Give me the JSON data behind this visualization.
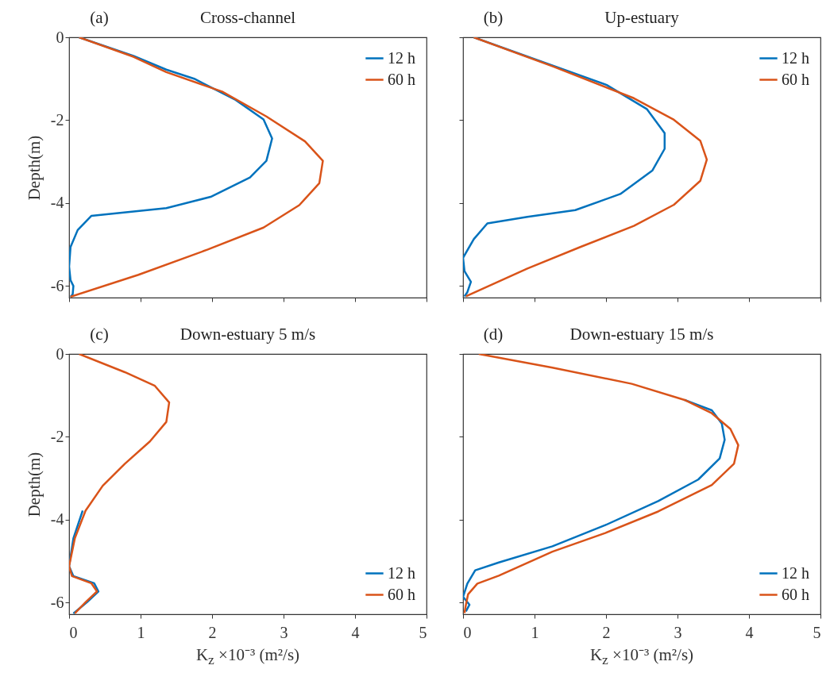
{
  "chart_data": [
    {
      "type": "line",
      "title": "Cross-channel",
      "annotations": [
        "(a)"
      ],
      "ylabel": "Depth(m)",
      "xlim": [
        0,
        5
      ],
      "xticks": [
        0,
        1,
        2,
        3,
        4,
        5
      ],
      "ylim": [
        -6.28,
        0
      ],
      "yticks": [
        -6,
        -4,
        -2,
        0
      ],
      "tick_labels": "y",
      "legend": "top right",
      "series": [
        {
          "name": "12 h",
          "color": "#0072bd",
          "x": [
            0.14,
            0.9,
            1.36,
            1.75,
            2.33,
            2.72,
            2.84,
            2.76,
            2.53,
            1.98,
            1.36,
            0.31,
            0.12,
            0.02,
            0,
            0.02,
            0.06,
            0.05,
            0.02
          ],
          "values": [
            0,
            -0.45,
            -0.78,
            -1.0,
            -1.51,
            -1.98,
            -2.44,
            -2.98,
            -3.38,
            -3.85,
            -4.12,
            -4.31,
            -4.65,
            -5.06,
            -5.53,
            -5.86,
            -6.0,
            -6.2,
            -6.26
          ]
        },
        {
          "name": "60 h",
          "color": "#d95319",
          "x": [
            0.14,
            0.9,
            1.36,
            2.14,
            2.76,
            3.3,
            3.55,
            3.5,
            3.22,
            2.72,
            1.94,
            0.97,
            0.02
          ],
          "values": [
            0,
            -0.47,
            -0.84,
            -1.31,
            -1.91,
            -2.51,
            -2.98,
            -3.52,
            -4.05,
            -4.59,
            -5.12,
            -5.73,
            -6.26
          ]
        }
      ]
    },
    {
      "type": "line",
      "title": "Up-estuary",
      "annotations": [
        "(b)"
      ],
      "xlim": [
        0,
        5
      ],
      "xticks": [
        0,
        1,
        2,
        3,
        4,
        5
      ],
      "ylim": [
        -6.28,
        0
      ],
      "yticks": [
        -6,
        -4,
        -2,
        0
      ],
      "tick_labels": false,
      "legend": "top right",
      "series": [
        {
          "name": "12 h",
          "color": "#0072bd",
          "x": [
            0.15,
            null,
            2.01,
            2.57,
            2.82,
            2.82,
            2.65,
            2.2,
            1.57,
            0.9,
            0.34,
            0.15,
            0,
            0.02,
            0.11,
            0.06,
            0.02
          ],
          "values": [
            0,
            null,
            -1.15,
            -1.73,
            -2.31,
            -2.69,
            -3.21,
            -3.78,
            -4.17,
            -4.33,
            -4.49,
            -4.87,
            -5.32,
            -5.64,
            -5.9,
            -6.15,
            -6.25
          ]
        },
        {
          "name": "60 h",
          "color": "#d95319",
          "x": [
            0.15,
            1.27,
            2.39,
            2.95,
            3.32,
            3.41,
            3.32,
            2.95,
            2.39,
            1.64,
            0.9,
            0.04
          ],
          "values": [
            0,
            -0.71,
            -1.47,
            -1.99,
            -2.5,
            -2.95,
            -3.46,
            -4.04,
            -4.55,
            -5.06,
            -5.58,
            -6.25
          ]
        }
      ]
    },
    {
      "type": "line",
      "title": "Down-estuary 5 m/s",
      "annotations": [
        "(c)"
      ],
      "xlabel": "K$_{z}$ ×10⁻³ (m²/s)",
      "ylabel": "Depth(m)",
      "xlim": [
        0,
        5
      ],
      "xticks": [
        0,
        1,
        2,
        3,
        4,
        5
      ],
      "ylim": [
        -6.28,
        0
      ],
      "yticks": [
        -6,
        -4,
        -2,
        0
      ],
      "legend": "bottom right",
      "series": [
        {
          "name": "12 h",
          "color": "#0072bd",
          "x": [
            null,
            null,
            null,
            null,
            null,
            null,
            null,
            null,
            0.19,
            0.06,
            0,
            0.06,
            0.35,
            0.41,
            0.25,
            0.06
          ],
          "values": [
            null,
            null,
            null,
            null,
            null,
            null,
            null,
            null,
            -3.78,
            -4.45,
            -5.12,
            -5.36,
            -5.53,
            -5.73,
            -5.99,
            -6.26
          ]
        },
        {
          "name": "60 h",
          "color": "#d95319",
          "x": [
            0.14,
            0.78,
            1.2,
            1.4,
            1.36,
            1.13,
            0.78,
            0.47,
            0.23,
            0.08,
            0,
            0.04,
            0.31,
            0.39,
            0.23,
            0.08
          ],
          "values": [
            0,
            -0.44,
            -0.77,
            -1.17,
            -1.64,
            -2.11,
            -2.65,
            -3.18,
            -3.78,
            -4.45,
            -5.12,
            -5.36,
            -5.53,
            -5.73,
            -5.99,
            -6.26
          ]
        }
      ]
    },
    {
      "type": "line",
      "title": "Down-estuary 15 m/s",
      "annotations": [
        "(d)"
      ],
      "xlabel": "K$_{z}$ ×10⁻³ (m²/s)",
      "xlim": [
        0,
        5
      ],
      "xticks": [
        0,
        1,
        2,
        3,
        4,
        5
      ],
      "ylim": [
        -6.28,
        0
      ],
      "yticks": [
        -6,
        -4,
        -2,
        0
      ],
      "tick_labels": "x",
      "legend": "bottom right",
      "series": [
        {
          "name": "12 h",
          "color": "#0072bd",
          "x": [
            null,
            null,
            null,
            3.1,
            3.48,
            3.62,
            3.66,
            3.59,
            3.29,
            2.73,
            1.99,
            1.25,
            0.5,
            0.17,
            0.06,
            0,
            0.09,
            0.04
          ],
          "values": [
            null,
            null,
            null,
            -1.11,
            -1.36,
            -1.68,
            -2.07,
            -2.52,
            -3.03,
            -3.55,
            -4.13,
            -4.64,
            -5.03,
            -5.22,
            -5.54,
            -5.86,
            -6.05,
            -6.21
          ]
        },
        {
          "name": "60 h",
          "color": "#d95319",
          "x": [
            0.22,
            1.25,
            2.36,
            3.1,
            3.48,
            3.74,
            3.85,
            3.79,
            3.48,
            2.73,
            1.99,
            1.25,
            0.5,
            0.2,
            0.07,
            0.04,
            0.02
          ],
          "values": [
            0,
            -0.33,
            -0.72,
            -1.11,
            -1.43,
            -1.81,
            -2.2,
            -2.65,
            -3.16,
            -3.8,
            -4.32,
            -4.77,
            -5.35,
            -5.54,
            -5.8,
            -6.05,
            -6.25
          ]
        }
      ]
    }
  ]
}
